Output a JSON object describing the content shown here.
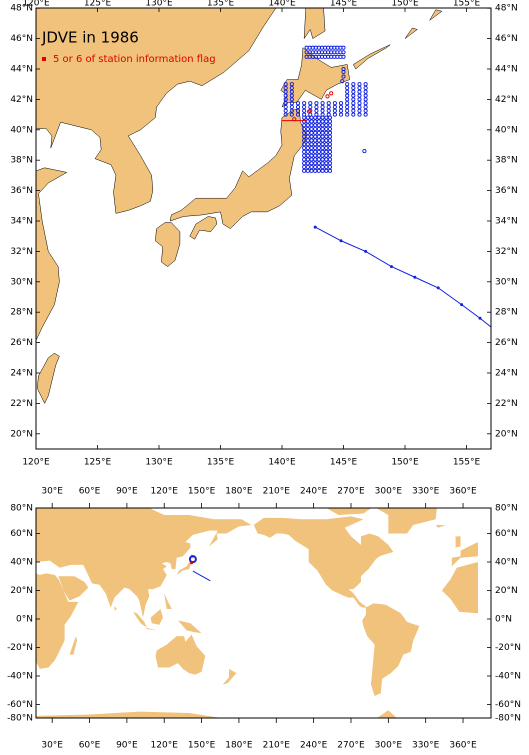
{
  "top_map": {
    "title": "JDVE in 1986",
    "legend": "5 or 6 of station information flag",
    "x_labels": [
      "120°E",
      "125°E",
      "130°E",
      "135°E",
      "140°E",
      "145°E",
      "150°E",
      "155°E"
    ],
    "y_labels": [
      "20°N",
      "22°N",
      "24°N",
      "26°N",
      "28°N",
      "30°N",
      "32°N",
      "34°N",
      "36°N",
      "38°N",
      "40°N",
      "42°N",
      "44°N",
      "46°N",
      "48°N"
    ]
  },
  "bottom_map": {
    "x_labels": [
      "30°E",
      "60°E",
      "90°E",
      "120°E",
      "150°E",
      "180°E",
      "210°E",
      "240°E",
      "270°E",
      "300°E",
      "330°E",
      "360°E"
    ],
    "y_labels": [
      "80°N",
      "60°N",
      "40°N",
      "20°N",
      "0°N",
      "-20°N",
      "-40°N",
      "-60°N",
      "-80°N"
    ]
  }
}
